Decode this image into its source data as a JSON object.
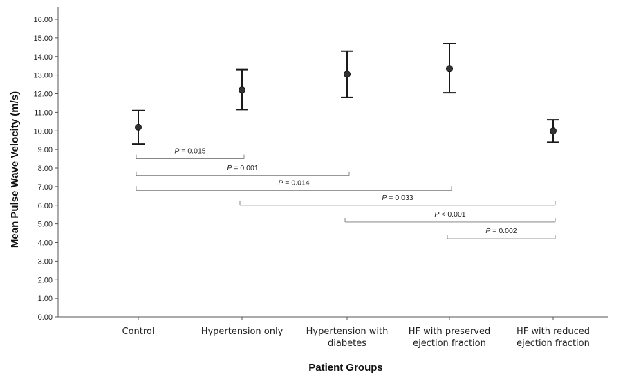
{
  "chart_data": {
    "type": "scatter",
    "subtype": "error-bar",
    "xlabel": "Patient Groups",
    "ylabel": "Mean Pulse Wave Velocity (m/s)",
    "ylim": [
      0,
      16
    ],
    "yticks": [
      "0.00",
      "1.00",
      "2.00",
      "3.00",
      "4.00",
      "5.00",
      "6.00",
      "7.00",
      "8.00",
      "9.00",
      "10.00",
      "11.00",
      "12.00",
      "13.00",
      "14.00",
      "15.00",
      "16.00"
    ],
    "grid": false,
    "categories": [
      [
        "Control"
      ],
      [
        "Hypertension only"
      ],
      [
        "Hypertension with",
        "diabetes"
      ],
      [
        "HF with preserved",
        "ejection fraction"
      ],
      [
        "HF with reduced",
        "ejection fraction"
      ]
    ],
    "series": [
      {
        "means": [
          10.2,
          12.2,
          13.05,
          13.35,
          10.0
        ],
        "lower": [
          9.3,
          11.15,
          11.8,
          12.05,
          9.4
        ],
        "upper": [
          11.1,
          13.3,
          14.3,
          14.7,
          10.6
        ]
      }
    ],
    "comparisons": [
      {
        "from": 0,
        "to": 1,
        "y": 8.5,
        "p_symbol": "P",
        "p_text": " = 0.015"
      },
      {
        "from": 0,
        "to": 2,
        "y": 7.6,
        "p_symbol": "P",
        "p_text": " = 0.001"
      },
      {
        "from": 0,
        "to": 3,
        "y": 6.8,
        "p_symbol": "P",
        "p_text": " = 0.014"
      },
      {
        "from": 1,
        "to": 4,
        "y": 6.0,
        "p_symbol": "P",
        "p_text": " = 0.033"
      },
      {
        "from": 2,
        "to": 4,
        "y": 5.1,
        "p_symbol": "P",
        "p_text": " < 0.001"
      },
      {
        "from": 3,
        "to": 4,
        "y": 4.2,
        "p_symbol": "P",
        "p_text": " = 0.002"
      }
    ]
  }
}
